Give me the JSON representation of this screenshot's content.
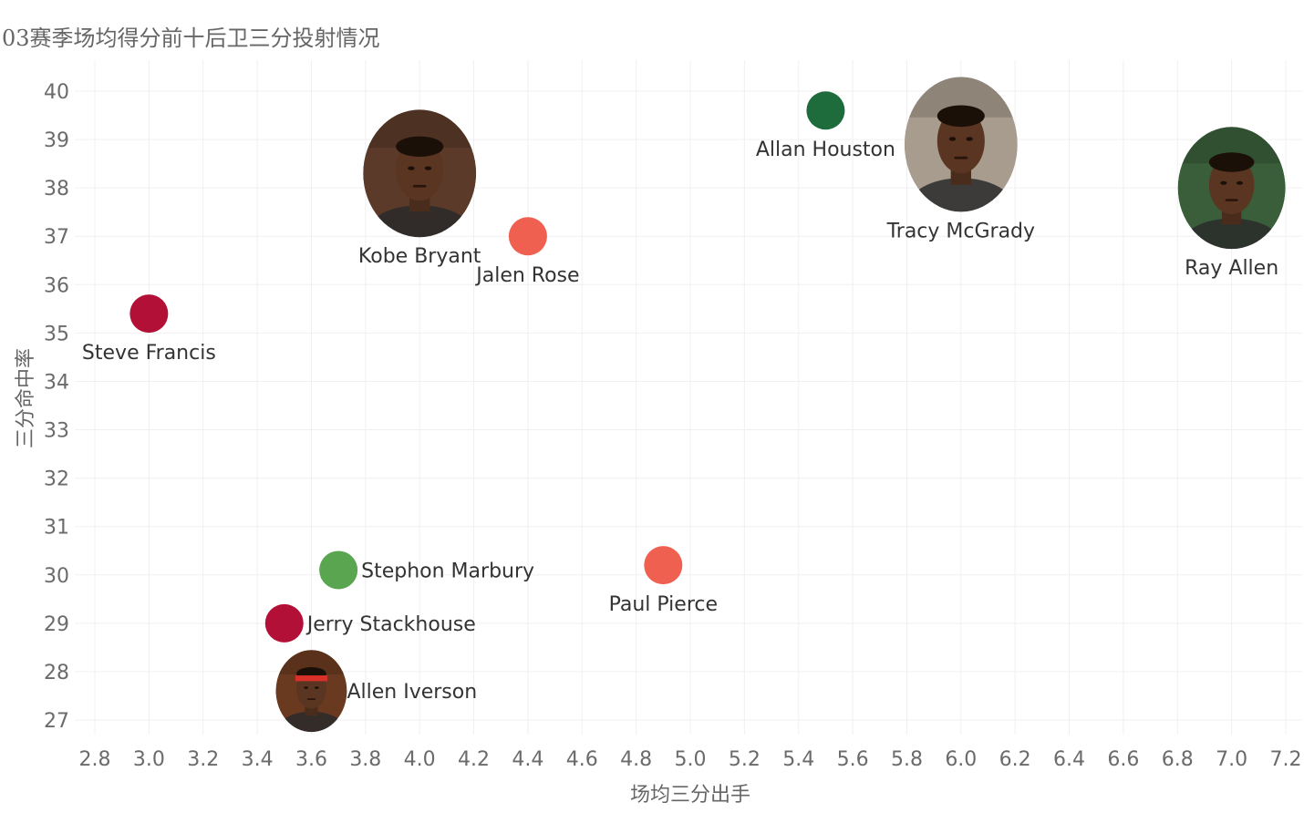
{
  "chart_data": {
    "type": "scatter",
    "title": "03赛季场均得分前十后卫三分投射情况",
    "xlabel": "场均三分出手",
    "ylabel": "三分命中率",
    "xlim": [
      2.72,
      7.22
    ],
    "ylim": [
      26.7,
      40.6
    ],
    "x_ticks": [
      "2.8",
      "3.0",
      "3.2",
      "3.4",
      "3.6",
      "3.8",
      "4.0",
      "4.2",
      "4.4",
      "4.6",
      "4.8",
      "5.0",
      "5.2",
      "5.4",
      "5.6",
      "5.8",
      "6.0",
      "6.2",
      "6.4",
      "6.6",
      "6.8",
      "7.0",
      "7.2"
    ],
    "y_ticks": [
      "27",
      "28",
      "29",
      "30",
      "31",
      "32",
      "33",
      "34",
      "35",
      "36",
      "37",
      "38",
      "39",
      "40"
    ],
    "grid": true,
    "points": [
      {
        "name": "Kobe Bryant",
        "x": 4.0,
        "y": 38.3,
        "marker": "photo",
        "icon": "kobe-bryant-photo",
        "color": "#5b3a29",
        "label_pos": "below"
      },
      {
        "name": "Allan Houston",
        "x": 5.5,
        "y": 39.6,
        "marker": "dot",
        "color": "#1e6b3c",
        "label_pos": "below"
      },
      {
        "name": "Tracy McGrady",
        "x": 6.0,
        "y": 38.9,
        "marker": "photo",
        "icon": "tracy-mcgrady-photo",
        "color": "#a89c8e",
        "label_pos": "below"
      },
      {
        "name": "Ray Allen",
        "x": 7.0,
        "y": 38.0,
        "marker": "photo",
        "icon": "ray-allen-photo",
        "color": "#3a5e3a",
        "label_pos": "below"
      },
      {
        "name": "Jalen Rose",
        "x": 4.4,
        "y": 37.0,
        "marker": "dot",
        "color": "#f06050",
        "label_pos": "below"
      },
      {
        "name": "Steve Francis",
        "x": 3.0,
        "y": 35.4,
        "marker": "dot",
        "color": "#b31038",
        "label_pos": "below"
      },
      {
        "name": "Stephon Marbury",
        "x": 3.7,
        "y": 30.1,
        "marker": "dot",
        "color": "#5aa650",
        "label_pos": "right"
      },
      {
        "name": "Paul Pierce",
        "x": 4.9,
        "y": 30.2,
        "marker": "dot",
        "color": "#f06050",
        "label_pos": "below"
      },
      {
        "name": "Jerry Stackhouse",
        "x": 3.5,
        "y": 29.0,
        "marker": "dot",
        "color": "#b31038",
        "label_pos": "right"
      },
      {
        "name": "Allen Iverson",
        "x": 3.6,
        "y": 27.6,
        "marker": "photo",
        "icon": "allen-iverson-photo",
        "color": "#6a3a20",
        "label_pos": "right"
      }
    ]
  }
}
